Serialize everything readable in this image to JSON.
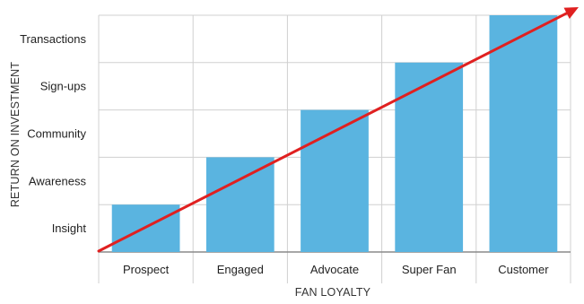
{
  "chart_data": {
    "type": "bar",
    "title": "",
    "xlabel": "FAN LOYALTY",
    "ylabel": "RETURN ON INVESTMENT",
    "categories": [
      "Prospect",
      "Engaged",
      "Advocate",
      "Super Fan",
      "Customer"
    ],
    "y_levels": [
      "Insight",
      "Awareness",
      "Community",
      "Sign-ups",
      "Transactions"
    ],
    "values": [
      1,
      2,
      3,
      4,
      5
    ],
    "ylim": [
      0,
      5
    ],
    "grid": true,
    "legend": "none",
    "trend_arrow": true,
    "colors": {
      "bar": "#5ab4e0",
      "arrow": "#e02020",
      "grid": "#d0d0d0"
    }
  }
}
